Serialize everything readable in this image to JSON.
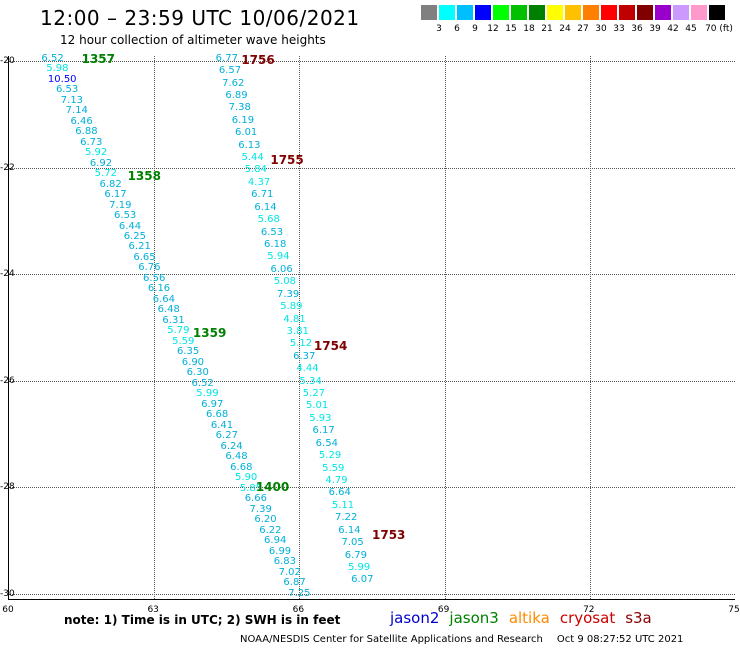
{
  "header": {
    "title": "12:00 – 23:59 UTC 10/06/2021",
    "subtitle": "12 hour collection of altimeter wave heights"
  },
  "colorbar": {
    "colors": [
      "#808080",
      "#00ffff",
      "#00bfff",
      "#0000ff",
      "#00ff00",
      "#00c000",
      "#008000",
      "#ffff00",
      "#ffc000",
      "#ff8000",
      "#ff0000",
      "#c00000",
      "#800000",
      "#9900cc",
      "#cc99ff",
      "#ff99cc",
      "#000000"
    ],
    "labels": [
      "3",
      "6",
      "9",
      "12",
      "15",
      "18",
      "21",
      "24",
      "27",
      "30",
      "33",
      "36",
      "39",
      "42",
      "45",
      "70 (ft)"
    ]
  },
  "map": {
    "lon_range": [
      60,
      75
    ],
    "lat_range": [
      -30.1,
      -19.9
    ],
    "x_ticks": [
      "60",
      "63",
      "66",
      "69",
      "72",
      "75"
    ],
    "y_ticks": [
      "-20",
      "-22",
      "-24",
      "-26",
      "-28",
      "-30"
    ],
    "grid": "dotted"
  },
  "tracks": [
    {
      "id": "west",
      "start": [
        60.9,
        -19.95
      ],
      "end": [
        66.0,
        -30.0
      ],
      "values": [
        "6.52",
        "5.98",
        "10.50",
        "6.53",
        "7.13",
        "7.14",
        "6.46",
        "6.88",
        "6.73",
        "5.92",
        "6.92",
        "5.72",
        "6.82",
        "6.17",
        "7.19",
        "6.53",
        "6.44",
        "6.25",
        "6.21",
        "6.65",
        "6.76",
        "6.56",
        "6.16",
        "6.64",
        "6.48",
        "6.31",
        "5.79",
        "5.59",
        "6.35",
        "6.90",
        "6.30",
        "6.52",
        "5.99",
        "6.97",
        "6.68",
        "6.41",
        "6.27",
        "6.24",
        "6.48",
        "6.68",
        "5.90",
        "5.85",
        "6.66",
        "7.39",
        "6.20",
        "6.22",
        "6.94",
        "6.99",
        "6.83",
        "7.02",
        "6.87",
        "7.25"
      ]
    },
    {
      "id": "east",
      "start": [
        64.5,
        -19.95
      ],
      "end": [
        67.3,
        -29.75
      ],
      "values": [
        "6.77",
        "6.57",
        "7.62",
        "6.89",
        "7.38",
        "6.19",
        "6.01",
        "6.13",
        "5.44",
        "5.84",
        "4.37",
        "6.71",
        "6.14",
        "5.68",
        "6.53",
        "6.18",
        "5.94",
        "6.06",
        "5.08",
        "7.39",
        "5.89",
        "4.81",
        "3.81",
        "5.12",
        "6.37",
        "4.44",
        "5.34",
        "5.27",
        "5.01",
        "5.93",
        "6.17",
        "6.54",
        "5.29",
        "5.59",
        "4.79",
        "6.64",
        "5.11",
        "7.22",
        "6.14",
        "7.05",
        "6.79",
        "5.99",
        "6.07"
      ]
    }
  ],
  "time_labels": [
    {
      "text": "1357",
      "lon": 61.5,
      "lat": -19.95,
      "color": "#008000"
    },
    {
      "text": "1358",
      "lon": 62.45,
      "lat": -22.15,
      "color": "#008000"
    },
    {
      "text": "1359",
      "lon": 63.8,
      "lat": -25.1,
      "color": "#008000"
    },
    {
      "text": "1400",
      "lon": 65.1,
      "lat": -28.0,
      "color": "#008000"
    },
    {
      "text": "1756",
      "lon": 64.8,
      "lat": -19.98,
      "color": "#800000"
    },
    {
      "text": "1755",
      "lon": 65.4,
      "lat": -21.85,
      "color": "#800000"
    },
    {
      "text": "1754",
      "lon": 66.3,
      "lat": -25.35,
      "color": "#800000"
    },
    {
      "text": "1753",
      "lon": 67.5,
      "lat": -28.9,
      "color": "#800000"
    }
  ],
  "footer": {
    "note": "note: 1) Time is in UTC; 2) SWH is in feet",
    "legend": [
      {
        "label": "jason2",
        "color": "#0000cc"
      },
      {
        "label": "jason3",
        "color": "#008000"
      },
      {
        "label": "altika",
        "color": "#ff8c00"
      },
      {
        "label": "cryosat",
        "color": "#cc0000"
      },
      {
        "label": "s3a",
        "color": "#8b0000"
      }
    ],
    "credit": "NOAA/NESDIS Center for Satellite Applications and Research",
    "timestamp": "Oct  9 08:27:52 UTC 2021"
  }
}
